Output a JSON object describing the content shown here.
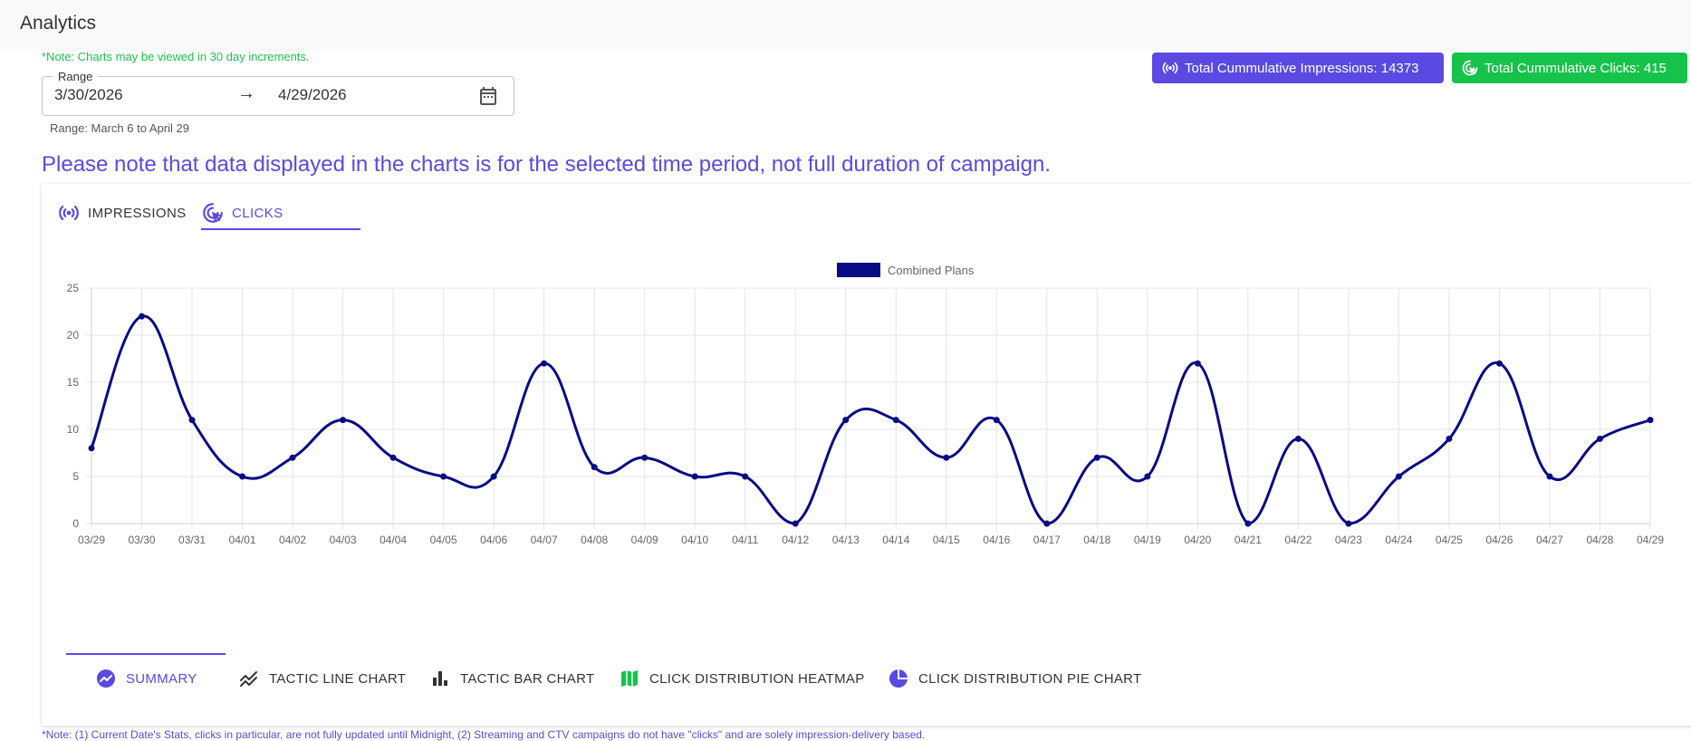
{
  "header": {
    "title": "Analytics"
  },
  "notes": {
    "increments": "*Note: Charts may be viewed in 30 day increments.",
    "period": "Please note that data displayed in the charts is for the selected time period, not full duration of campaign.",
    "footer": "*Note: (1) Current Date's Stats, clicks in particular, are not fully updated until Midnight, (2) Streaming and CTV campaigns do not have \"clicks\" and are solely impression-delivery based."
  },
  "range": {
    "label": "Range",
    "start": "3/30/2026",
    "arrow": "→",
    "end": "4/29/2026",
    "helper": "Range: March 6 to April 29"
  },
  "totals": {
    "impressions_label": "Total Cummulative Impressions: 14373",
    "clicks_label": "Total Cummulative Clicks: 415"
  },
  "tabs": [
    {
      "label": "IMPRESSIONS",
      "icon": "broadcast-icon",
      "active": false
    },
    {
      "label": "CLICKS",
      "icon": "ads-click-icon",
      "active": true
    }
  ],
  "bottom_tabs": [
    {
      "label": "SUMMARY",
      "icon": "summary-chart-icon",
      "active": true
    },
    {
      "label": "TACTIC LINE CHART",
      "icon": "line-chart-icon",
      "active": false
    },
    {
      "label": "TACTIC BAR CHART",
      "icon": "bar-chart-icon",
      "active": false
    },
    {
      "label": "CLICK DISTRIBUTION HEATMAP",
      "icon": "map-icon",
      "active": false
    },
    {
      "label": "CLICK DISTRIBUTION PIE CHART",
      "icon": "pie-chart-icon",
      "active": false
    }
  ],
  "colors": {
    "accent": "#5a4ae3",
    "green": "#16c34a",
    "series": "#0a0a86"
  },
  "chart_data": {
    "type": "line",
    "title": "",
    "xlabel": "",
    "ylabel": "",
    "ylim": [
      0,
      25
    ],
    "yticks": [
      0,
      5,
      10,
      15,
      20,
      25
    ],
    "grid": true,
    "legend_position": "top-center",
    "categories": [
      "03/29",
      "03/30",
      "03/31",
      "04/01",
      "04/02",
      "04/03",
      "04/04",
      "04/05",
      "04/06",
      "04/07",
      "04/08",
      "04/09",
      "04/10",
      "04/11",
      "04/12",
      "04/13",
      "04/14",
      "04/15",
      "04/16",
      "04/17",
      "04/18",
      "04/19",
      "04/20",
      "04/21",
      "04/22",
      "04/23",
      "04/24",
      "04/25",
      "04/26",
      "04/27",
      "04/28",
      "04/29"
    ],
    "series": [
      {
        "name": "Combined Plans",
        "color": "#0a0a86",
        "values": [
          8,
          22,
          11,
          5,
          7,
          11,
          7,
          5,
          5,
          17,
          6,
          7,
          5,
          5,
          0,
          11,
          11,
          7,
          11,
          0,
          7,
          5,
          17,
          0,
          9,
          0,
          5,
          9,
          17,
          5,
          9,
          11
        ]
      }
    ]
  }
}
